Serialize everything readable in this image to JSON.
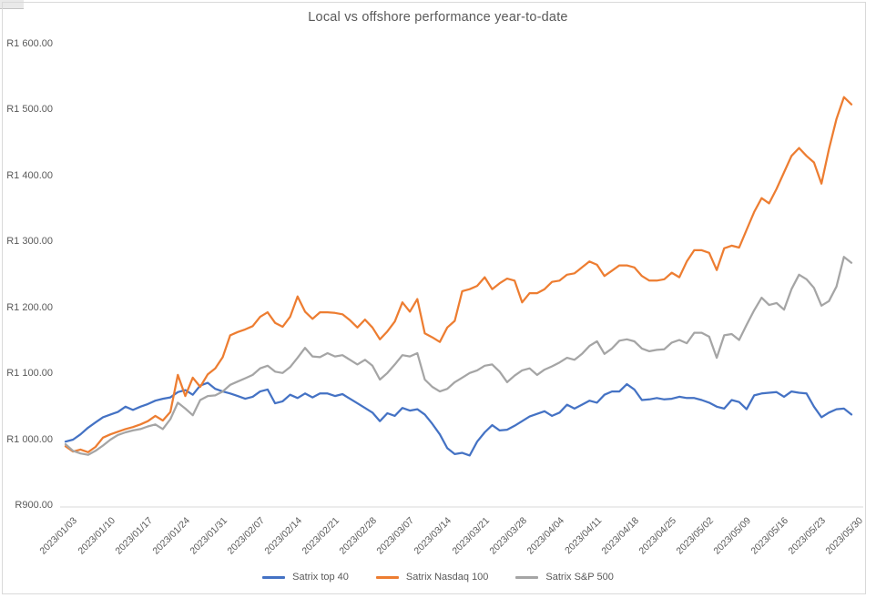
{
  "title": "Local vs offshore performance year-to-date",
  "colors": {
    "series_top40": "#4472C4",
    "series_nasdaq": "#ED7D31",
    "series_sp500": "#A5A5A5",
    "axis_text": "#595959",
    "axis_line": "#D9D9D9",
    "chart_border": "#D9D9D9",
    "background": "#FFFFFF"
  },
  "legend": [
    {
      "label": "Satrix top 40"
    },
    {
      "label": "Satrix Nasdaq 100"
    },
    {
      "label": "Satrix S&P 500"
    }
  ],
  "chart_data": {
    "type": "line",
    "title": "Local vs offshore performance year-to-date",
    "xlabel": "",
    "ylabel": "",
    "ylim": [
      900,
      1600
    ],
    "grid": "none",
    "legend_position": "bottom",
    "y_tick_values": [
      900,
      1000,
      1100,
      1200,
      1300,
      1400,
      1500,
      1600
    ],
    "y_tick_labels": [
      "R900.00",
      "R1 000.00",
      "R1 100.00",
      "R1 200.00",
      "R1 300.00",
      "R1 400.00",
      "R1 500.00",
      "R1 600.00"
    ],
    "x_tick_labels": [
      "2023/01/03",
      "2023/01/10",
      "2023/01/17",
      "2023/01/24",
      "2023/01/31",
      "2023/02/07",
      "2023/02/14",
      "2023/02/21",
      "2023/02/28",
      "2023/03/07",
      "2023/03/14",
      "2023/03/21",
      "2023/03/28",
      "2023/04/04",
      "2023/04/11",
      "2023/04/18",
      "2023/04/25",
      "2023/05/02",
      "2023/05/09",
      "2023/05/16",
      "2023/05/23",
      "2023/05/30"
    ],
    "x_tick_every": 5,
    "x": [
      "2023/01/03",
      "2023/01/04",
      "2023/01/05",
      "2023/01/06",
      "2023/01/09",
      "2023/01/10",
      "2023/01/11",
      "2023/01/12",
      "2023/01/13",
      "2023/01/16",
      "2023/01/17",
      "2023/01/18",
      "2023/01/19",
      "2023/01/20",
      "2023/01/23",
      "2023/01/24",
      "2023/01/25",
      "2023/01/26",
      "2023/01/27",
      "2023/01/30",
      "2023/01/31",
      "2023/02/01",
      "2023/02/02",
      "2023/02/03",
      "2023/02/06",
      "2023/02/07",
      "2023/02/08",
      "2023/02/09",
      "2023/02/10",
      "2023/02/13",
      "2023/02/14",
      "2023/02/15",
      "2023/02/16",
      "2023/02/17",
      "2023/02/20",
      "2023/02/21",
      "2023/02/22",
      "2023/02/23",
      "2023/02/24",
      "2023/02/27",
      "2023/02/28",
      "2023/03/01",
      "2023/03/02",
      "2023/03/03",
      "2023/03/06",
      "2023/03/07",
      "2023/03/08",
      "2023/03/09",
      "2023/03/10",
      "2023/03/13",
      "2023/03/14",
      "2023/03/15",
      "2023/03/16",
      "2023/03/17",
      "2023/03/20",
      "2023/03/21",
      "2023/03/22",
      "2023/03/23",
      "2023/03/24",
      "2023/03/27",
      "2023/03/28",
      "2023/03/29",
      "2023/03/30",
      "2023/03/31",
      "2023/04/03",
      "2023/04/04",
      "2023/04/05",
      "2023/04/06",
      "2023/04/07",
      "2023/04/10",
      "2023/04/11",
      "2023/04/12",
      "2023/04/13",
      "2023/04/14",
      "2023/04/17",
      "2023/04/18",
      "2023/04/19",
      "2023/04/20",
      "2023/04/21",
      "2023/04/24",
      "2023/04/25",
      "2023/04/26",
      "2023/04/27",
      "2023/04/28",
      "2023/05/01",
      "2023/05/02",
      "2023/05/03",
      "2023/05/04",
      "2023/05/05",
      "2023/05/08",
      "2023/05/09",
      "2023/05/10",
      "2023/05/11",
      "2023/05/12",
      "2023/05/15",
      "2023/05/16",
      "2023/05/17",
      "2023/05/18",
      "2023/05/19",
      "2023/05/22",
      "2023/05/23",
      "2023/05/24",
      "2023/05/25",
      "2023/05/26",
      "2023/05/29",
      "2023/05/30"
    ],
    "series": [
      {
        "name": "Satrix top 40",
        "color": "#4472C4",
        "values": [
          997,
          1000,
          1008,
          1018,
          1026,
          1034,
          1038,
          1042,
          1050,
          1045,
          1050,
          1054,
          1059,
          1062,
          1064,
          1072,
          1075,
          1068,
          1082,
          1086,
          1077,
          1073,
          1070,
          1066,
          1062,
          1065,
          1073,
          1076,
          1055,
          1058,
          1068,
          1063,
          1070,
          1064,
          1070,
          1070,
          1066,
          1069,
          1062,
          1055,
          1048,
          1041,
          1028,
          1040,
          1036,
          1048,
          1044,
          1046,
          1038,
          1024,
          1008,
          987,
          978,
          980,
          976,
          997,
          1011,
          1022,
          1014,
          1015,
          1021,
          1028,
          1035,
          1039,
          1043,
          1036,
          1041,
          1053,
          1047,
          1053,
          1059,
          1056,
          1068,
          1073,
          1073,
          1084,
          1076,
          1060,
          1061,
          1063,
          1061,
          1062,
          1065,
          1063,
          1063,
          1060,
          1056,
          1050,
          1047,
          1060,
          1057,
          1046,
          1067,
          1070,
          1071,
          1072,
          1065,
          1073,
          1071,
          1070,
          1050,
          1034,
          1041,
          1046,
          1047,
          1038
        ]
      },
      {
        "name": "Satrix Nasdaq 100",
        "color": "#ED7D31",
        "values": [
          990,
          982,
          985,
          981,
          989,
          1003,
          1008,
          1012,
          1016,
          1019,
          1023,
          1028,
          1036,
          1029,
          1042,
          1098,
          1066,
          1094,
          1080,
          1099,
          1108,
          1125,
          1158,
          1163,
          1167,
          1172,
          1186,
          1193,
          1177,
          1171,
          1186,
          1217,
          1194,
          1183,
          1193,
          1193,
          1192,
          1190,
          1181,
          1170,
          1182,
          1170,
          1152,
          1164,
          1179,
          1208,
          1194,
          1213,
          1161,
          1155,
          1148,
          1170,
          1180,
          1225,
          1228,
          1233,
          1246,
          1228,
          1237,
          1244,
          1241,
          1208,
          1222,
          1222,
          1228,
          1239,
          1241,
          1250,
          1252,
          1261,
          1270,
          1265,
          1248,
          1256,
          1264,
          1264,
          1261,
          1248,
          1241,
          1241,
          1243,
          1253,
          1246,
          1270,
          1287,
          1287,
          1283,
          1257,
          1290,
          1294,
          1291,
          1318,
          1345,
          1366,
          1358,
          1380,
          1405,
          1430,
          1442,
          1430,
          1420,
          1388,
          1440,
          1486,
          1519,
          1508
        ]
      },
      {
        "name": "Satrix S&P 500",
        "color": "#A5A5A5",
        "values": [
          993,
          983,
          979,
          977,
          983,
          991,
          1000,
          1007,
          1011,
          1014,
          1016,
          1020,
          1023,
          1016,
          1031,
          1056,
          1047,
          1037,
          1060,
          1066,
          1067,
          1073,
          1083,
          1088,
          1093,
          1098,
          1108,
          1112,
          1103,
          1101,
          1110,
          1124,
          1139,
          1126,
          1125,
          1131,
          1126,
          1128,
          1121,
          1114,
          1121,
          1112,
          1091,
          1101,
          1114,
          1128,
          1126,
          1131,
          1091,
          1080,
          1073,
          1077,
          1087,
          1094,
          1101,
          1105,
          1112,
          1114,
          1103,
          1087,
          1097,
          1105,
          1108,
          1098,
          1106,
          1111,
          1117,
          1124,
          1121,
          1130,
          1142,
          1149,
          1130,
          1138,
          1150,
          1152,
          1149,
          1138,
          1134,
          1136,
          1137,
          1147,
          1151,
          1146,
          1162,
          1162,
          1156,
          1124,
          1158,
          1160,
          1151,
          1174,
          1196,
          1215,
          1204,
          1207,
          1197,
          1228,
          1250,
          1243,
          1230,
          1203,
          1210,
          1232,
          1277,
          1268
        ]
      }
    ]
  }
}
